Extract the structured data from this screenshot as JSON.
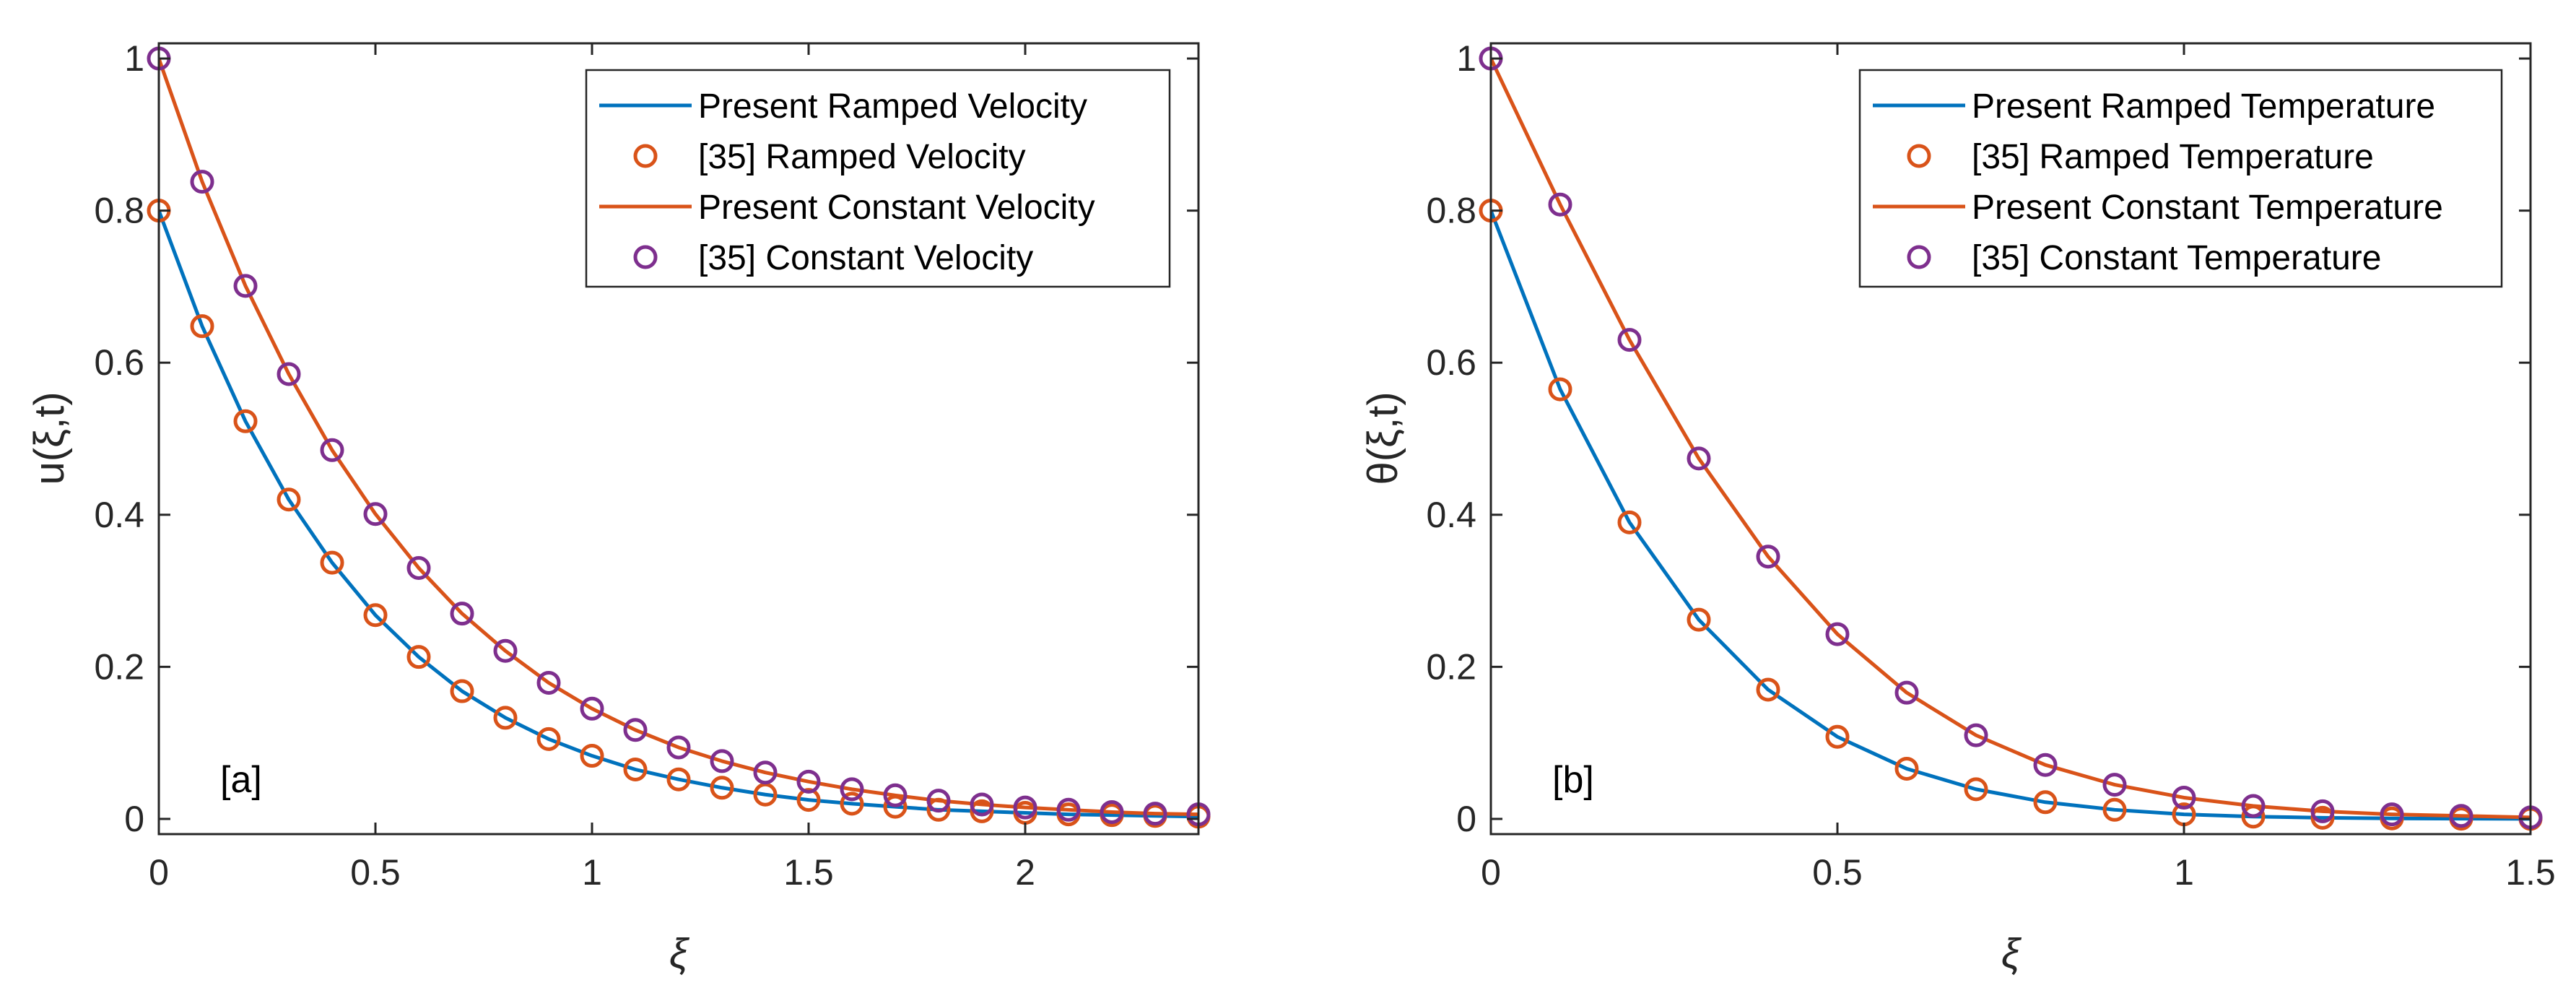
{
  "chart_data": [
    {
      "type": "line",
      "panel_label": "[a]",
      "xlabel": "ξ",
      "ylabel": "u(ξ,t)",
      "xlim": [
        0,
        2.4
      ],
      "ylim": [
        -0.02,
        1.02
      ],
      "xticks": [
        0,
        0.5,
        1,
        1.5,
        2
      ],
      "xtick_labels": [
        "0",
        "0.5",
        "1",
        "1.5",
        "2"
      ],
      "yticks": [
        0,
        0.2,
        0.4,
        0.6,
        0.8,
        1
      ],
      "ytick_labels": [
        "0",
        "0.2",
        "0.4",
        "0.6",
        "0.8",
        "1"
      ],
      "legend_position": "top-right",
      "series": [
        {
          "name": "Present Ramped Velocity",
          "style": "line",
          "color": "#0072BD",
          "x": [
            0,
            0.1,
            0.2,
            0.3,
            0.4,
            0.5,
            0.6,
            0.7,
            0.8,
            0.9,
            1.0,
            1.1,
            1.2,
            1.3,
            1.4,
            1.5,
            1.6,
            1.7,
            1.8,
            1.9,
            2.0,
            2.1,
            2.2,
            2.3,
            2.4
          ],
          "values": [
            0.8,
            0.648,
            0.523,
            0.42,
            0.337,
            0.268,
            0.213,
            0.168,
            0.133,
            0.105,
            0.083,
            0.065,
            0.052,
            0.041,
            0.032,
            0.025,
            0.02,
            0.016,
            0.012,
            0.01,
            0.008,
            0.006,
            0.005,
            0.004,
            0.003
          ]
        },
        {
          "name": "[35] Ramped Velocity",
          "style": "markers",
          "color": "#D95319",
          "x": [
            0,
            0.1,
            0.2,
            0.3,
            0.4,
            0.5,
            0.6,
            0.7,
            0.8,
            0.9,
            1.0,
            1.1,
            1.2,
            1.3,
            1.4,
            1.5,
            1.6,
            1.7,
            1.8,
            1.9,
            2.0,
            2.1,
            2.2,
            2.3,
            2.4
          ],
          "values": [
            0.8,
            0.648,
            0.523,
            0.42,
            0.337,
            0.268,
            0.213,
            0.168,
            0.133,
            0.105,
            0.083,
            0.065,
            0.052,
            0.041,
            0.032,
            0.025,
            0.02,
            0.016,
            0.012,
            0.01,
            0.008,
            0.006,
            0.005,
            0.004,
            0.003
          ]
        },
        {
          "name": "Present Constant Velocity",
          "style": "line",
          "color": "#D95319",
          "x": [
            0,
            0.1,
            0.2,
            0.3,
            0.4,
            0.5,
            0.6,
            0.7,
            0.8,
            0.9,
            1.0,
            1.1,
            1.2,
            1.3,
            1.4,
            1.5,
            1.6,
            1.7,
            1.8,
            1.9,
            2.0,
            2.1,
            2.2,
            2.3,
            2.4
          ],
          "values": [
            1.0,
            0.838,
            0.701,
            0.585,
            0.485,
            0.401,
            0.33,
            0.27,
            0.221,
            0.179,
            0.145,
            0.117,
            0.094,
            0.076,
            0.061,
            0.049,
            0.039,
            0.031,
            0.024,
            0.019,
            0.015,
            0.012,
            0.009,
            0.007,
            0.006
          ]
        },
        {
          "name": "[35] Constant Velocity",
          "style": "markers",
          "color": "#7E2F8E",
          "x": [
            0,
            0.1,
            0.2,
            0.3,
            0.4,
            0.5,
            0.6,
            0.7,
            0.8,
            0.9,
            1.0,
            1.1,
            1.2,
            1.3,
            1.4,
            1.5,
            1.6,
            1.7,
            1.8,
            1.9,
            2.0,
            2.1,
            2.2,
            2.3,
            2.4
          ],
          "values": [
            1.0,
            0.838,
            0.701,
            0.585,
            0.485,
            0.401,
            0.33,
            0.27,
            0.221,
            0.179,
            0.145,
            0.117,
            0.094,
            0.076,
            0.061,
            0.049,
            0.039,
            0.031,
            0.024,
            0.019,
            0.015,
            0.012,
            0.009,
            0.007,
            0.006
          ]
        }
      ]
    },
    {
      "type": "line",
      "panel_label": "[b]",
      "xlabel": "ξ",
      "ylabel": "θ(ξ,t)",
      "xlim": [
        0,
        1.5
      ],
      "ylim": [
        -0.02,
        1.02
      ],
      "xticks": [
        0,
        0.5,
        1,
        1.5
      ],
      "xtick_labels": [
        "0",
        "0.5",
        "1",
        "1.5"
      ],
      "yticks": [
        0,
        0.2,
        0.4,
        0.6,
        0.8,
        1
      ],
      "ytick_labels": [
        "0",
        "0.2",
        "0.4",
        "0.6",
        "0.8",
        "1"
      ],
      "legend_position": "top-right",
      "series": [
        {
          "name": "Present Ramped Temperature",
          "style": "line",
          "color": "#0072BD",
          "x": [
            0,
            0.1,
            0.2,
            0.3,
            0.4,
            0.5,
            0.6,
            0.7,
            0.8,
            0.9,
            1.0,
            1.1,
            1.2,
            1.3,
            1.4,
            1.5
          ],
          "values": [
            0.8,
            0.565,
            0.39,
            0.262,
            0.17,
            0.108,
            0.066,
            0.039,
            0.022,
            0.012,
            0.006,
            0.003,
            0.0015,
            0.0007,
            0.0003,
            0.0001
          ]
        },
        {
          "name": "[35] Ramped Temperature",
          "style": "markers",
          "color": "#D95319",
          "x": [
            0,
            0.1,
            0.2,
            0.3,
            0.4,
            0.5,
            0.6,
            0.7,
            0.8,
            0.9,
            1.0,
            1.1,
            1.2,
            1.3,
            1.4,
            1.5
          ],
          "values": [
            0.8,
            0.565,
            0.39,
            0.262,
            0.17,
            0.108,
            0.066,
            0.039,
            0.022,
            0.012,
            0.006,
            0.003,
            0.0015,
            0.0007,
            0.0003,
            0.0001
          ]
        },
        {
          "name": "Present Constant Temperature",
          "style": "line",
          "color": "#D95319",
          "x": [
            0,
            0.1,
            0.2,
            0.3,
            0.4,
            0.5,
            0.6,
            0.7,
            0.8,
            0.9,
            1.0,
            1.1,
            1.2,
            1.3,
            1.4,
            1.5
          ],
          "values": [
            1.0,
            0.808,
            0.63,
            0.474,
            0.345,
            0.243,
            0.166,
            0.11,
            0.071,
            0.045,
            0.028,
            0.017,
            0.01,
            0.006,
            0.004,
            0.002
          ]
        },
        {
          "name": "[35] Constant Temperature",
          "style": "markers",
          "color": "#7E2F8E",
          "x": [
            0,
            0.1,
            0.2,
            0.3,
            0.4,
            0.5,
            0.6,
            0.7,
            0.8,
            0.9,
            1.0,
            1.1,
            1.2,
            1.3,
            1.4,
            1.5
          ],
          "values": [
            1.0,
            0.808,
            0.63,
            0.474,
            0.345,
            0.243,
            0.166,
            0.11,
            0.071,
            0.045,
            0.028,
            0.017,
            0.01,
            0.006,
            0.004,
            0.002
          ]
        }
      ]
    }
  ]
}
